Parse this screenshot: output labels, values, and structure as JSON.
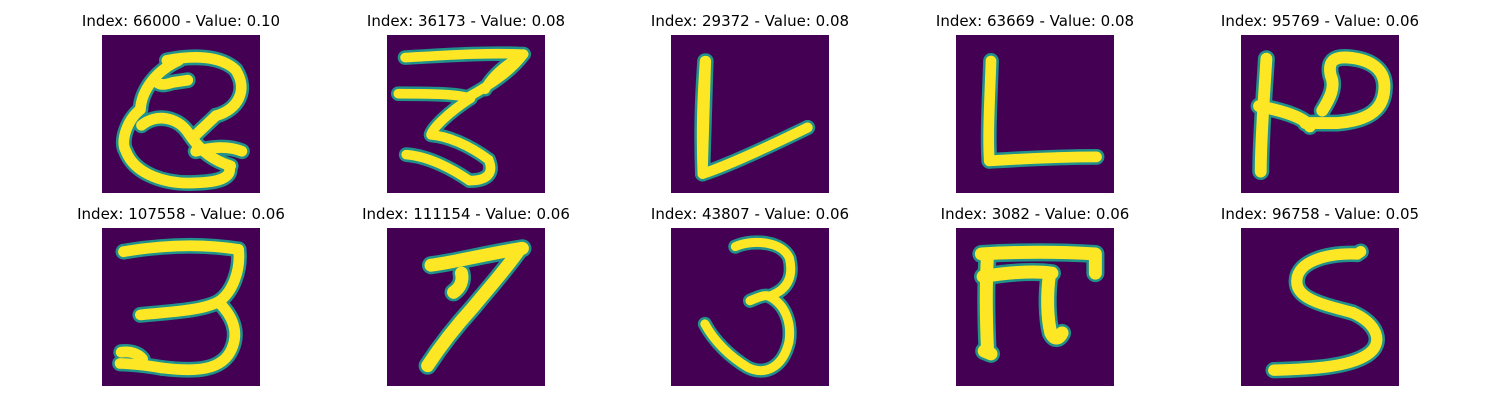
{
  "figure": {
    "background_color": "#440154",
    "stroke_color": "#fde725",
    "edge_color": "#21918c",
    "panels": [
      {
        "title": "Index: 66000 - Value: 0.10",
        "glyph": "Q"
      },
      {
        "title": "Index: 36173 - Value: 0.08",
        "glyph": "3"
      },
      {
        "title": "Index: 29372 - Value: 0.08",
        "glyph": "V"
      },
      {
        "title": "Index: 63669 - Value: 0.08",
        "glyph": "L"
      },
      {
        "title": "Index: 95769 - Value: 0.06",
        "glyph": "P"
      },
      {
        "title": "Index: 107558 - Value: 0.06",
        "glyph": "3"
      },
      {
        "title": "Index: 111154 - Value: 0.06",
        "glyph": "7"
      },
      {
        "title": "Index: 43807 - Value: 0.06",
        "glyph": "3"
      },
      {
        "title": "Index: 3082 - Value: 0.06",
        "glyph": "π"
      },
      {
        "title": "Index: 96758 - Value: 0.05",
        "glyph": "S"
      }
    ]
  }
}
